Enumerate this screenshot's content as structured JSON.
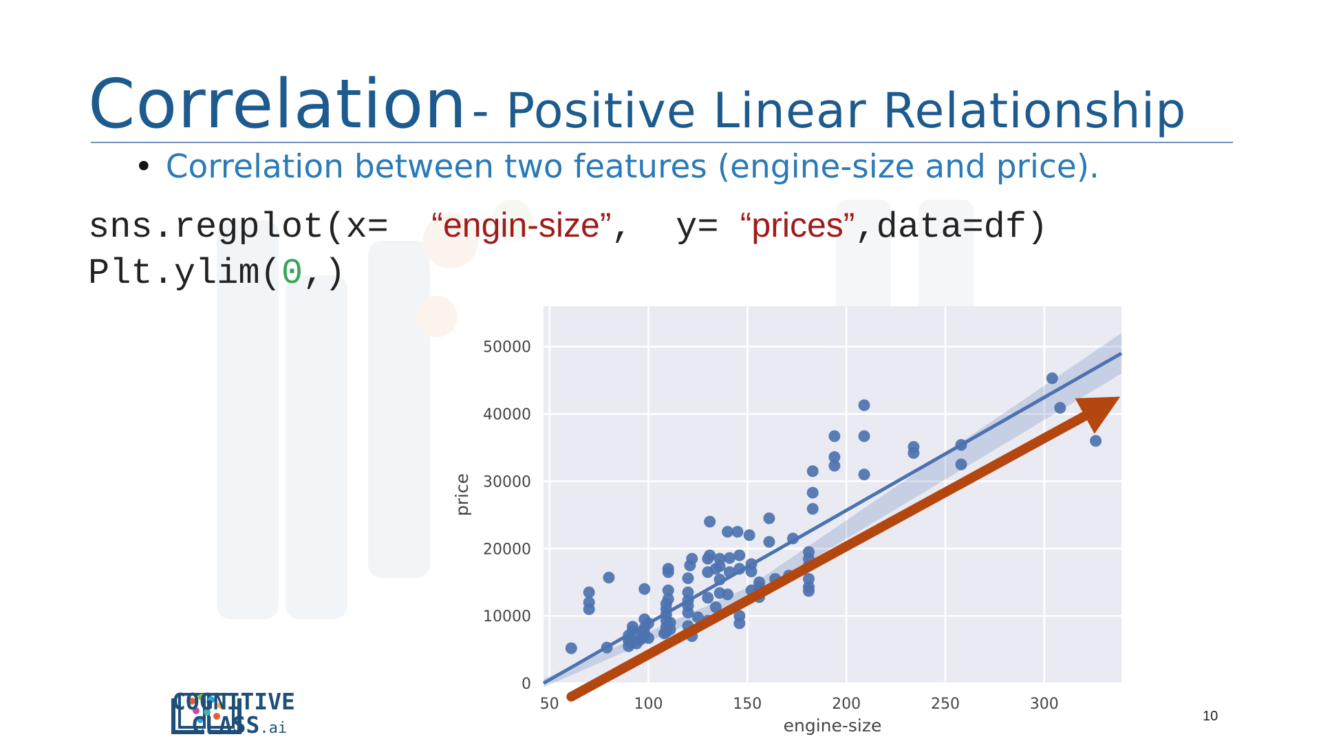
{
  "slide": {
    "title_main": "Correlation",
    "title_sub": "- Positive Linear Relationship",
    "bullet": "Correlation between two features (engine-size and price).",
    "code": {
      "line1_prefix": "sns.regplot(x= ",
      "line1_x": "“engin-size”",
      "line1_mid": ",  y=",
      "line1_y": "“prices”",
      "line1_suffix": ",data=df)",
      "line2_prefix": "Plt.ylim(",
      "line2_num": "0",
      "line2_suffix": ",)"
    },
    "logo": {
      "line1": "COGNITIVE",
      "line2": "CLASS",
      "suffix": ".ai"
    },
    "page_number": "10"
  },
  "colors": {
    "title": "#1d5a8e",
    "bullet": "#2a7ab8",
    "string": "#a01b1b",
    "number": "#3aa35a",
    "points": "#4c72b0",
    "plot_bg": "#eaeaf2",
    "arrow": "#b3470f"
  },
  "chart_data": {
    "type": "scatter",
    "xlabel": "engine-size",
    "ylabel": "price",
    "xlim": [
      47,
      339
    ],
    "ylim": [
      0,
      56000
    ],
    "xticks": [
      50,
      100,
      150,
      200,
      250,
      300
    ],
    "yticks": [
      0,
      10000,
      20000,
      30000,
      40000,
      50000
    ],
    "grid": true,
    "regression_line": {
      "x": [
        47,
        339
      ],
      "y": [
        0,
        49000
      ]
    },
    "confidence_band": {
      "x": [
        47,
        150,
        339
      ],
      "lower": [
        -600,
        12600,
        46000
      ],
      "upper": [
        600,
        14200,
        52000
      ]
    },
    "annotation_arrow": {
      "from": [
        61,
        -2000
      ],
      "to": [
        333,
        41700
      ]
    },
    "points": [
      [
        61,
        5200
      ],
      [
        70,
        12000
      ],
      [
        70,
        11000
      ],
      [
        70,
        13500
      ],
      [
        79,
        5300
      ],
      [
        80,
        15700
      ],
      [
        90,
        5500
      ],
      [
        90,
        6300
      ],
      [
        90,
        7100
      ],
      [
        91,
        6000
      ],
      [
        92,
        6400
      ],
      [
        92,
        7800
      ],
      [
        92,
        8400
      ],
      [
        94,
        5900
      ],
      [
        96,
        6500
      ],
      [
        97,
        7500
      ],
      [
        97,
        6800
      ],
      [
        98,
        8200
      ],
      [
        98,
        7300
      ],
      [
        98,
        9500
      ],
      [
        98,
        14000
      ],
      [
        100,
        6700
      ],
      [
        100,
        8900
      ],
      [
        108,
        7400
      ],
      [
        109,
        7600
      ],
      [
        109,
        8400
      ],
      [
        109,
        9300
      ],
      [
        109,
        10200
      ],
      [
        109,
        11000
      ],
      [
        109,
        11800
      ],
      [
        110,
        12500
      ],
      [
        110,
        13800
      ],
      [
        110,
        16500
      ],
      [
        110,
        17000
      ],
      [
        111,
        9000
      ],
      [
        111,
        8000
      ],
      [
        120,
        8500
      ],
      [
        120,
        10500
      ],
      [
        120,
        11500
      ],
      [
        120,
        12300
      ],
      [
        120,
        13500
      ],
      [
        120,
        15600
      ],
      [
        121,
        17500
      ],
      [
        122,
        18500
      ],
      [
        122,
        7000
      ],
      [
        125,
        9800
      ],
      [
        130,
        9300
      ],
      [
        130,
        12700
      ],
      [
        130,
        16500
      ],
      [
        130,
        18500
      ],
      [
        131,
        19000
      ],
      [
        131,
        24000
      ],
      [
        134,
        11300
      ],
      [
        134,
        17000
      ],
      [
        136,
        13400
      ],
      [
        136,
        15400
      ],
      [
        136,
        17400
      ],
      [
        136,
        18500
      ],
      [
        140,
        22500
      ],
      [
        140,
        13200
      ],
      [
        141,
        18600
      ],
      [
        141,
        16500
      ],
      [
        145,
        22500
      ],
      [
        146,
        10000
      ],
      [
        146,
        8900
      ],
      [
        146,
        17000
      ],
      [
        146,
        19000
      ],
      [
        151,
        22000
      ],
      [
        152,
        13800
      ],
      [
        152,
        16600
      ],
      [
        152,
        17700
      ],
      [
        156,
        14300
      ],
      [
        156,
        15000
      ],
      [
        156,
        12800
      ],
      [
        161,
        24500
      ],
      [
        161,
        21000
      ],
      [
        164,
        15500
      ],
      [
        171,
        16000
      ],
      [
        173,
        21500
      ],
      [
        181,
        13700
      ],
      [
        181,
        14300
      ],
      [
        181,
        15500
      ],
      [
        181,
        17500
      ],
      [
        181,
        18500
      ],
      [
        181,
        19500
      ],
      [
        183,
        25900
      ],
      [
        183,
        28300
      ],
      [
        183,
        31500
      ],
      [
        194,
        32300
      ],
      [
        194,
        33600
      ],
      [
        194,
        36700
      ],
      [
        209,
        31000
      ],
      [
        209,
        36700
      ],
      [
        209,
        41300
      ],
      [
        234,
        34200
      ],
      [
        234,
        35100
      ],
      [
        258,
        32500
      ],
      [
        258,
        35400
      ],
      [
        304,
        45300
      ],
      [
        308,
        40900
      ],
      [
        326,
        36000
      ]
    ]
  }
}
